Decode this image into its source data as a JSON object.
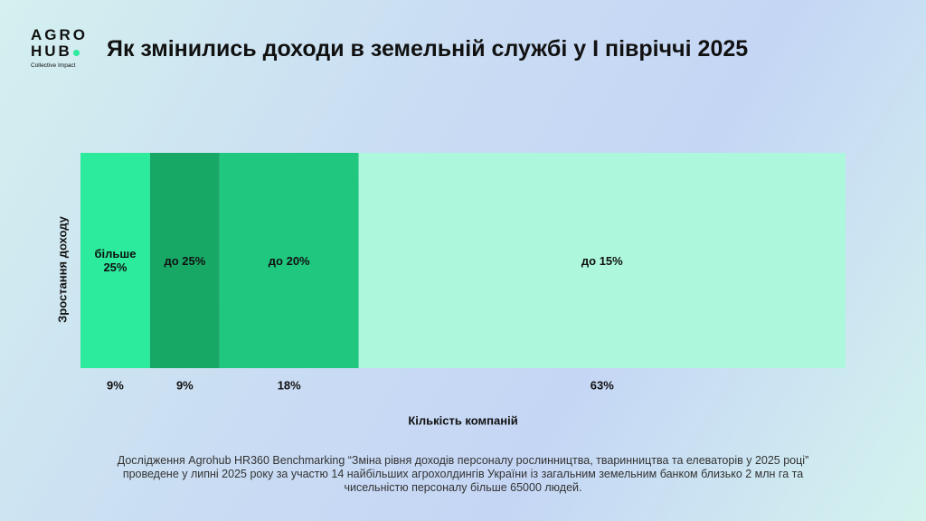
{
  "logo": {
    "line1": "AGRO",
    "line2": "HUB",
    "tagline": "Collective Impact"
  },
  "chart_data": {
    "type": "stacked-bar",
    "title": "Як змінились доходи в земельній службі у І півріччі 2025",
    "x_label": "Кількість компаній",
    "y_label": "Зростання доходу",
    "categories": [
      "більше 25%",
      "до 25%",
      "до 20%",
      "до 15%"
    ],
    "values": [
      9,
      9,
      18,
      63
    ],
    "value_labels": [
      "9%",
      "9%",
      "18%",
      "63%"
    ],
    "colors": [
      "#2ceb9c",
      "#17a866",
      "#20c77f",
      "#adf7dc"
    ],
    "xlim": [
      0,
      99
    ]
  },
  "footnote": "Дослідження Agrohub HR360 Benchmarking “Зміна рівня доходів персоналу рослинництва, тваринництва та елеваторів у 2025 році” проведене у липні 2025 року за участю 14 найбільших агрохолдингів України із загальним земельним банком близько 2 млн га та чисельністю персоналу більше 65000 людей."
}
